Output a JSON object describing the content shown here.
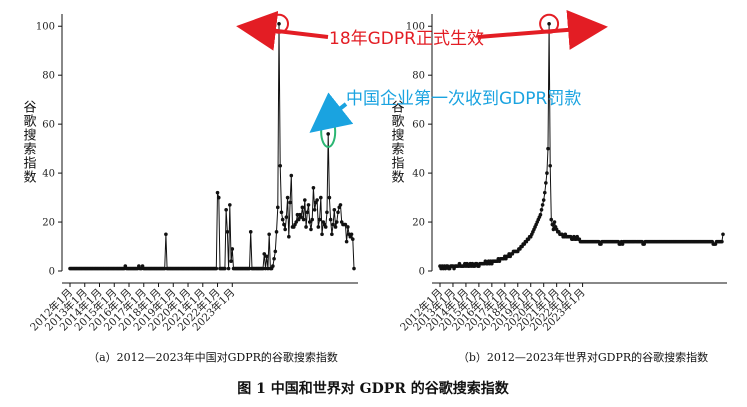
{
  "figure_title": "图 1 中国和世界对 GDPR 的谷歌搜索指数",
  "colors": {
    "line": "#111111",
    "annotation_red": "#e31d24",
    "annotation_blue": "#1aa3e0",
    "circle_green": "#2bb673"
  },
  "annotations": {
    "gdpr_effective": "18年GDPR正式生效",
    "china_first_fine": "中国企业第一次收到GDPR罚款"
  },
  "chart_data": [
    {
      "type": "line",
      "panel": "a",
      "caption": "（a）2012—2023年中国对GDPR的谷歌搜索指数",
      "ylabel": "谷歌搜索指数",
      "ylim": [
        0,
        105
      ],
      "yticks": [
        0,
        20,
        40,
        60,
        80,
        100
      ],
      "xticks": [
        "2012年1月",
        "2013年1月",
        "2014年1月",
        "2015年1月",
        "2016年1月",
        "2017年1月",
        "2018年1月",
        "2019年1月",
        "2020年1月",
        "2021年1月",
        "2022年1月",
        "2023年1月"
      ],
      "x_start": "2012-01",
      "frequency": "monthly",
      "values": [
        1,
        1,
        1,
        1,
        1,
        1,
        1,
        1,
        1,
        1,
        1,
        1,
        1,
        1,
        1,
        1,
        1,
        1,
        1,
        1,
        1,
        1,
        1,
        1,
        1,
        1,
        1,
        1,
        1,
        1,
        1,
        1,
        1,
        1,
        1,
        1,
        1,
        1,
        1,
        1,
        1,
        1,
        1,
        1,
        1,
        2,
        1,
        1,
        1,
        1,
        1,
        1,
        1,
        1,
        1,
        1,
        2,
        1,
        1,
        2,
        1,
        1,
        1,
        1,
        1,
        1,
        1,
        1,
        1,
        1,
        1,
        1,
        1,
        1,
        1,
        1,
        1,
        1,
        15,
        1,
        1,
        1,
        1,
        1,
        1,
        1,
        1,
        1,
        1,
        1,
        1,
        1,
        1,
        1,
        1,
        1,
        1,
        1,
        1,
        1,
        1,
        1,
        1,
        1,
        1,
        1,
        1,
        1,
        1,
        1,
        1,
        1,
        1,
        1,
        1,
        1,
        1,
        1,
        1,
        1,
        32,
        30,
        1,
        1,
        1,
        1,
        1,
        25,
        16,
        1,
        27,
        4,
        9,
        1,
        1,
        1,
        1,
        1,
        1,
        1,
        1,
        1,
        1,
        1,
        1,
        1,
        1,
        16,
        1,
        1,
        1,
        1,
        1,
        1,
        1,
        1,
        1,
        1,
        7,
        1,
        6,
        1,
        15,
        1,
        1,
        2,
        5,
        8,
        16,
        26,
        101,
        43,
        24,
        21,
        19,
        17,
        22,
        30,
        14,
        28,
        39,
        18,
        18,
        19,
        20,
        23,
        21,
        23,
        22,
        26,
        21,
        29,
        18,
        24,
        27,
        20,
        17,
        21,
        34,
        25,
        28,
        29,
        18,
        21,
        30,
        15,
        20,
        19,
        18,
        24,
        56,
        30,
        21,
        15,
        19,
        25,
        18,
        20,
        24,
        26,
        27,
        20,
        19,
        19,
        19,
        12,
        18,
        15,
        14,
        15,
        13,
        1
      ]
    },
    {
      "type": "line",
      "panel": "b",
      "caption": "（b）2012—2023年世界对GDPR的谷歌搜索指数",
      "ylabel": "谷歌搜索指数",
      "ylim": [
        0,
        105
      ],
      "yticks": [
        0,
        20,
        40,
        60,
        80,
        100
      ],
      "xticks": [
        "2012年1月",
        "2013年1月",
        "2014年1月",
        "2015年1月",
        "2016年1月",
        "2017年1月",
        "2018年1月",
        "2019年1月",
        "2020年1月",
        "2021年1月",
        "2022年1月",
        "2023年1月"
      ],
      "x_start": "2012-01",
      "frequency": "monthly",
      "values": [
        2,
        1,
        2,
        1,
        2,
        1,
        2,
        2,
        1,
        1,
        2,
        2,
        2,
        1,
        2,
        2,
        2,
        2,
        3,
        2,
        2,
        2,
        2,
        3,
        2,
        3,
        2,
        2,
        3,
        2,
        3,
        2,
        2,
        3,
        3,
        2,
        2,
        3,
        3,
        3,
        3,
        3,
        4,
        3,
        3,
        4,
        3,
        4,
        3,
        4,
        4,
        4,
        4,
        4,
        5,
        4,
        5,
        5,
        5,
        5,
        6,
        5,
        6,
        6,
        7,
        6,
        7,
        7,
        8,
        8,
        8,
        8,
        8,
        9,
        9,
        10,
        10,
        11,
        11,
        12,
        12,
        13,
        13,
        14,
        14,
        15,
        16,
        17,
        18,
        19,
        20,
        21,
        22,
        23,
        25,
        27,
        29,
        32,
        36,
        40,
        50,
        101,
        43,
        21,
        19,
        17,
        20,
        18,
        17,
        16,
        16,
        15,
        15,
        15,
        14,
        14,
        15,
        14,
        14,
        14,
        14,
        14,
        13,
        13,
        14,
        13,
        13,
        14,
        13,
        13,
        12,
        12,
        12,
        12,
        12,
        12,
        12,
        12,
        12,
        12,
        12,
        12,
        12,
        12,
        12,
        12,
        12,
        12,
        11,
        11,
        12,
        12,
        12,
        12,
        12,
        12,
        12,
        12,
        12,
        12,
        12,
        12,
        12,
        12,
        12,
        12,
        11,
        11,
        12,
        11,
        12,
        12,
        12,
        12,
        12,
        12,
        12,
        12,
        12,
        12,
        12,
        12,
        12,
        12,
        12,
        12,
        12,
        12,
        11,
        11,
        12,
        12,
        12,
        12,
        12,
        12,
        12,
        12,
        12,
        12,
        12,
        12,
        12,
        12,
        12,
        12,
        12,
        12,
        12,
        12,
        12,
        12,
        12,
        12,
        12,
        12,
        12,
        12,
        12,
        12,
        12,
        12,
        12,
        12,
        12,
        12,
        12,
        12,
        12,
        12,
        12,
        12,
        12,
        12,
        12,
        12,
        12,
        12,
        12,
        12,
        12,
        12,
        12,
        12,
        12,
        12,
        12,
        12,
        12,
        12,
        12,
        12,
        12,
        11,
        11,
        11,
        12,
        12,
        12,
        12,
        12,
        12,
        15
      ]
    }
  ]
}
